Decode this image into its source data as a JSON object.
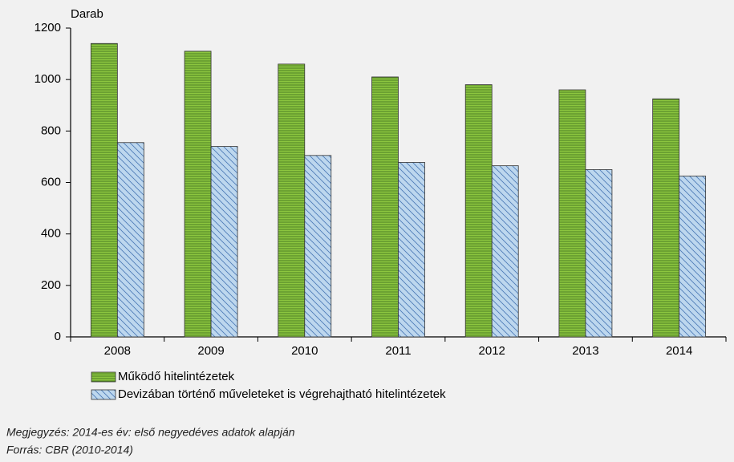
{
  "chart_data": {
    "type": "bar",
    "y_label": "Darab",
    "categories": [
      "2008",
      "2009",
      "2010",
      "2011",
      "2012",
      "2013",
      "2014"
    ],
    "series": [
      {
        "name": "Működő hitelintézetek",
        "color": "#8cc63f",
        "pattern": "horizontal",
        "values": [
          1140,
          1110,
          1060,
          1010,
          980,
          960,
          925
        ]
      },
      {
        "name": "Devizában történő műveleteket is végrehajtható hitelintézetek",
        "color": "#bdd7ee",
        "pattern": "diagonal",
        "values": [
          755,
          740,
          705,
          678,
          665,
          650,
          625
        ]
      }
    ],
    "ylim": [
      0,
      1200
    ],
    "yticks": [
      0,
      200,
      400,
      600,
      800,
      1000,
      1200
    ],
    "notes": [
      "Megjegyzés: 2014-es év: első negyedéves adatok alapján",
      "Forrás: CBR (2010-2014)"
    ]
  }
}
